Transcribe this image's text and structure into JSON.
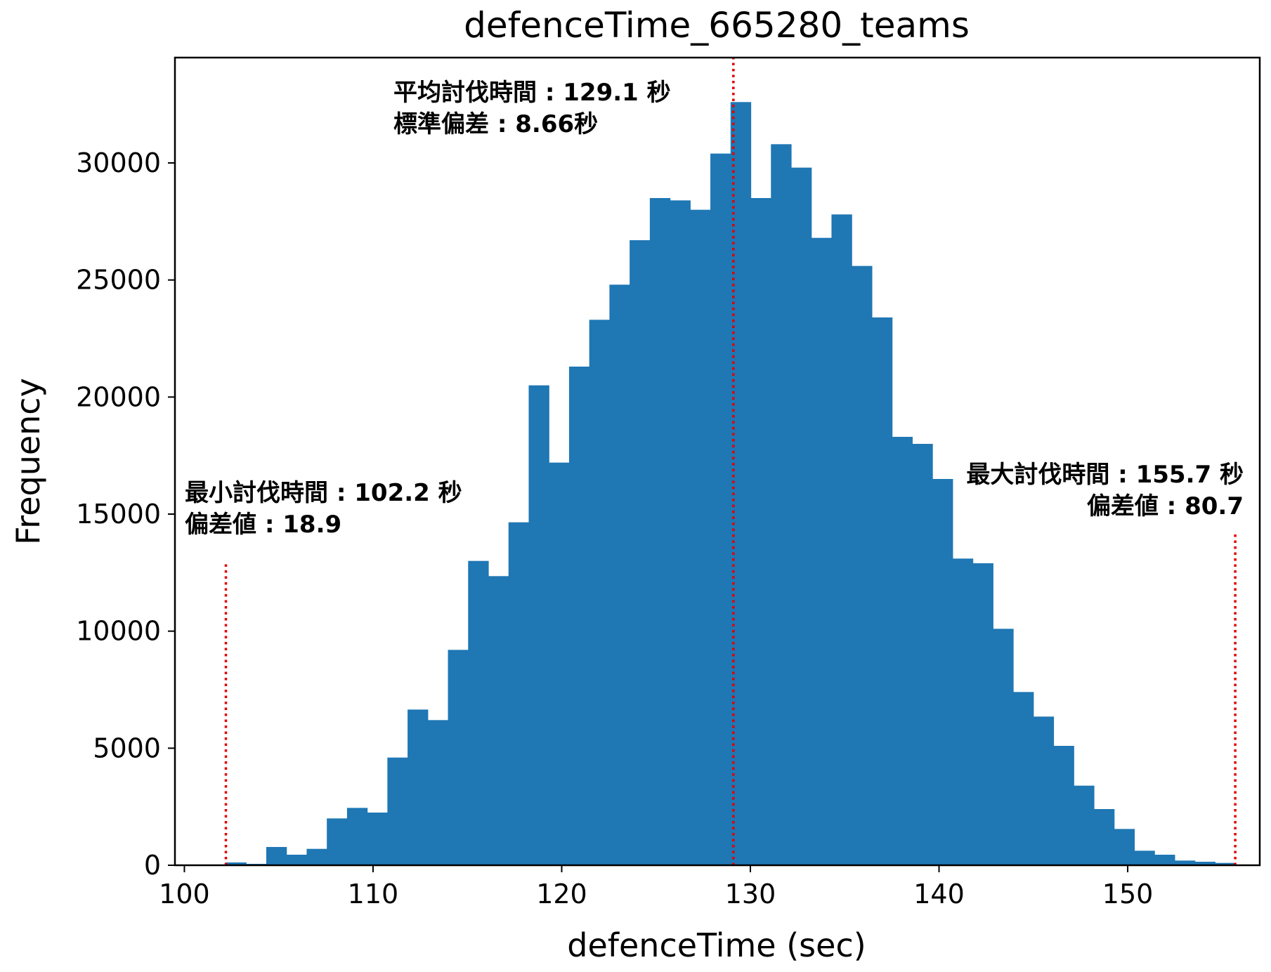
{
  "chart_data": {
    "type": "bar",
    "title": "defenceTime_665280_teams",
    "xlabel": "defenceTime (sec)",
    "ylabel": "Frequency",
    "xlim": [
      99.5,
      157
    ],
    "ylim": [
      0,
      34500
    ],
    "xticks": [
      100,
      110,
      120,
      130,
      140,
      150
    ],
    "yticks": [
      0,
      5000,
      10000,
      15000,
      20000,
      25000,
      30000
    ],
    "bin_start": 102.2,
    "bin_width": 1.07,
    "values": [
      120,
      60,
      780,
      450,
      700,
      2000,
      2450,
      2250,
      4600,
      6650,
      6200,
      9200,
      13000,
      12350,
      14650,
      20500,
      17200,
      21300,
      23300,
      24800,
      26700,
      28500,
      28400,
      28000,
      30400,
      32600,
      28500,
      30800,
      29800,
      26800,
      27800,
      25600,
      23400,
      18300,
      18000,
      16500,
      13100,
      12900,
      10100,
      7400,
      6350,
      5100,
      3400,
      2400,
      1550,
      620,
      450,
      200,
      150,
      100
    ],
    "bar_color": "#1f77b4",
    "grid": false,
    "vlines": [
      {
        "name": "min",
        "x": 102.2,
        "ymax": 12900,
        "color": "#e00000",
        "style": "dotted"
      },
      {
        "name": "mean",
        "x": 129.1,
        "ymax": 34500,
        "color": "#e00000",
        "style": "dotted"
      },
      {
        "name": "max",
        "x": 155.7,
        "ymax": 14200,
        "color": "#e00000",
        "style": "dotted"
      }
    ],
    "annotations": {
      "mean_line1": "平均討伐時間 : 129.1 秒",
      "mean_line2": "標準偏差 : 8.66秒",
      "min_line1": "最小討伐時間 : 102.2 秒",
      "min_line2": "偏差値 : 18.9",
      "max_line1": "最大討伐時間 : 155.7 秒",
      "max_line2": "偏差値 : 80.7"
    }
  }
}
